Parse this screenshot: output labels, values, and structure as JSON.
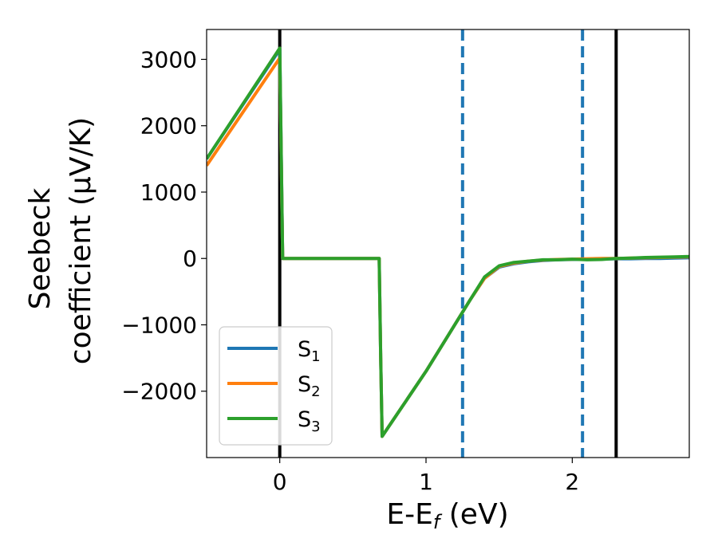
{
  "chart_data": {
    "type": "line",
    "xlabel": "E-E",
    "xlabel_sub": "f",
    "xlabel_unit": " (eV)",
    "ylabel_line1": "Seebeck",
    "ylabel_line2": "coefficient  (μV/K)",
    "xlim": [
      -0.5,
      2.8
    ],
    "ylim": [
      -3000,
      3450
    ],
    "xticks": [
      0,
      1,
      2
    ],
    "xtick_labels": [
      "0",
      "1",
      "2"
    ],
    "yticks": [
      -2000,
      -1000,
      0,
      1000,
      2000,
      3000
    ],
    "ytick_labels": [
      "−2000",
      "−1000",
      "0",
      "1000",
      "2000",
      "3000"
    ],
    "legend_position": "lower-left",
    "series": [
      {
        "name": "S",
        "subscript": "1",
        "color": "#1f77b4",
        "x": [
          -0.5,
          0.0,
          0.02,
          0.68,
          0.69,
          0.7,
          1.0,
          1.3,
          1.4,
          1.5,
          1.6,
          1.7,
          1.8,
          1.9,
          2.0,
          2.1,
          2.2,
          2.3,
          2.4,
          2.5,
          2.6,
          2.7,
          2.8
        ],
        "values": [
          1500,
          3150,
          0,
          0,
          -1500,
          -2680,
          -1700,
          -630,
          -300,
          -130,
          -80,
          -50,
          -30,
          -20,
          -15,
          -10,
          -10,
          -5,
          -5,
          0,
          0,
          5,
          10
        ]
      },
      {
        "name": "S",
        "subscript": "2",
        "color": "#ff7f0e",
        "x": [
          -0.5,
          0.0,
          0.02,
          0.68,
          0.69,
          0.7,
          1.0,
          1.3,
          1.4,
          1.5,
          1.6,
          1.7,
          1.8,
          1.9,
          2.0,
          2.1,
          2.2,
          2.3,
          2.4,
          2.5,
          2.6,
          2.7,
          2.8
        ],
        "values": [
          1400,
          3020,
          0,
          0,
          -1500,
          -2680,
          -1700,
          -630,
          -300,
          -120,
          -70,
          -40,
          -25,
          -15,
          -10,
          -5,
          0,
          0,
          5,
          10,
          15,
          20,
          25
        ]
      },
      {
        "name": "S",
        "subscript": "3",
        "color": "#2ca02c",
        "x": [
          -0.5,
          0.0,
          0.02,
          0.68,
          0.69,
          0.7,
          1.0,
          1.3,
          1.4,
          1.5,
          1.6,
          1.7,
          1.8,
          1.9,
          2.0,
          2.1,
          2.2,
          2.3,
          2.4,
          2.5,
          2.6,
          2.7,
          2.8
        ],
        "values": [
          1500,
          3170,
          0,
          0,
          -1500,
          -2680,
          -1700,
          -630,
          -280,
          -110,
          -60,
          -40,
          -20,
          -20,
          -10,
          -20,
          -15,
          0,
          5,
          15,
          20,
          25,
          30
        ]
      }
    ],
    "vlines": [
      {
        "x": 0.0,
        "style": "solid",
        "color": "#000000"
      },
      {
        "x": 1.25,
        "style": "dashed",
        "color": "#1f77b4"
      },
      {
        "x": 2.07,
        "style": "dashed",
        "color": "#1f77b4"
      },
      {
        "x": 2.3,
        "style": "solid",
        "color": "#000000"
      }
    ]
  }
}
